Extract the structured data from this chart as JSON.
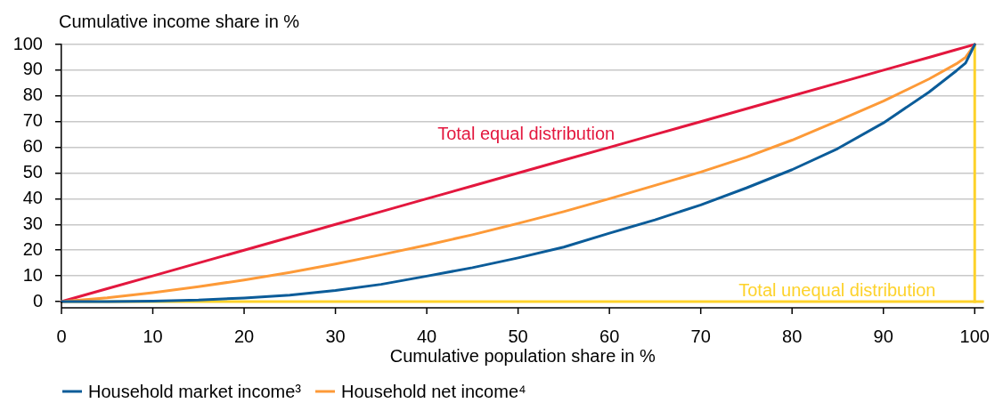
{
  "chart_data": {
    "type": "line",
    "ylabel": "Cumulative income share in %",
    "xlabel": "Cumulative population share in %",
    "xlim": [
      0,
      101
    ],
    "xticks": [
      0,
      10,
      20,
      30,
      40,
      50,
      60,
      70,
      80,
      90,
      100
    ],
    "ylim": [
      0,
      100
    ],
    "yticks": [
      0,
      10,
      20,
      30,
      40,
      50,
      60,
      70,
      80,
      90,
      100
    ],
    "grid": "y",
    "legend": "bottom left",
    "x": [
      0,
      5,
      10,
      15,
      20,
      25,
      30,
      35,
      40,
      45,
      50,
      55,
      60,
      65,
      70,
      75,
      80,
      85,
      90,
      95,
      98,
      99,
      100
    ],
    "series": [
      {
        "name": "Household market income³",
        "color": "#0b5c99",
        "values": [
          0,
          0,
          0.2,
          0.6,
          1.4,
          2.5,
          4.3,
          6.7,
          9.9,
          13.2,
          17,
          21.2,
          26.6,
          31.8,
          37.6,
          44.2,
          51.3,
          59.5,
          69.5,
          81.5,
          89.8,
          92.8,
          100
        ]
      },
      {
        "name": "Household net income⁴",
        "color": "#fd9a38",
        "values": [
          0,
          1.5,
          3.5,
          5.8,
          8.4,
          11.3,
          14.6,
          18.2,
          22,
          26,
          30.4,
          35,
          40,
          45.2,
          50.4,
          56.2,
          62.8,
          70.3,
          78,
          86.6,
          92.5,
          95,
          100
        ]
      },
      {
        "color": "#e3173e",
        "values": [
          0,
          5,
          10,
          15,
          20,
          25,
          30,
          35,
          40,
          45,
          50,
          55,
          60,
          65,
          70,
          75,
          80,
          85,
          90,
          95,
          98,
          99,
          100
        ]
      }
    ],
    "ref_lines": [
      {
        "axis": "y",
        "value": 0,
        "label": "Total unequal distribution",
        "color": "#fdd22a"
      },
      {
        "axis": "x",
        "value": 100,
        "color": "#fdd22a"
      }
    ],
    "annotations": [
      {
        "text": "Total equal distribution",
        "x": 60,
        "y": 60
      }
    ]
  }
}
